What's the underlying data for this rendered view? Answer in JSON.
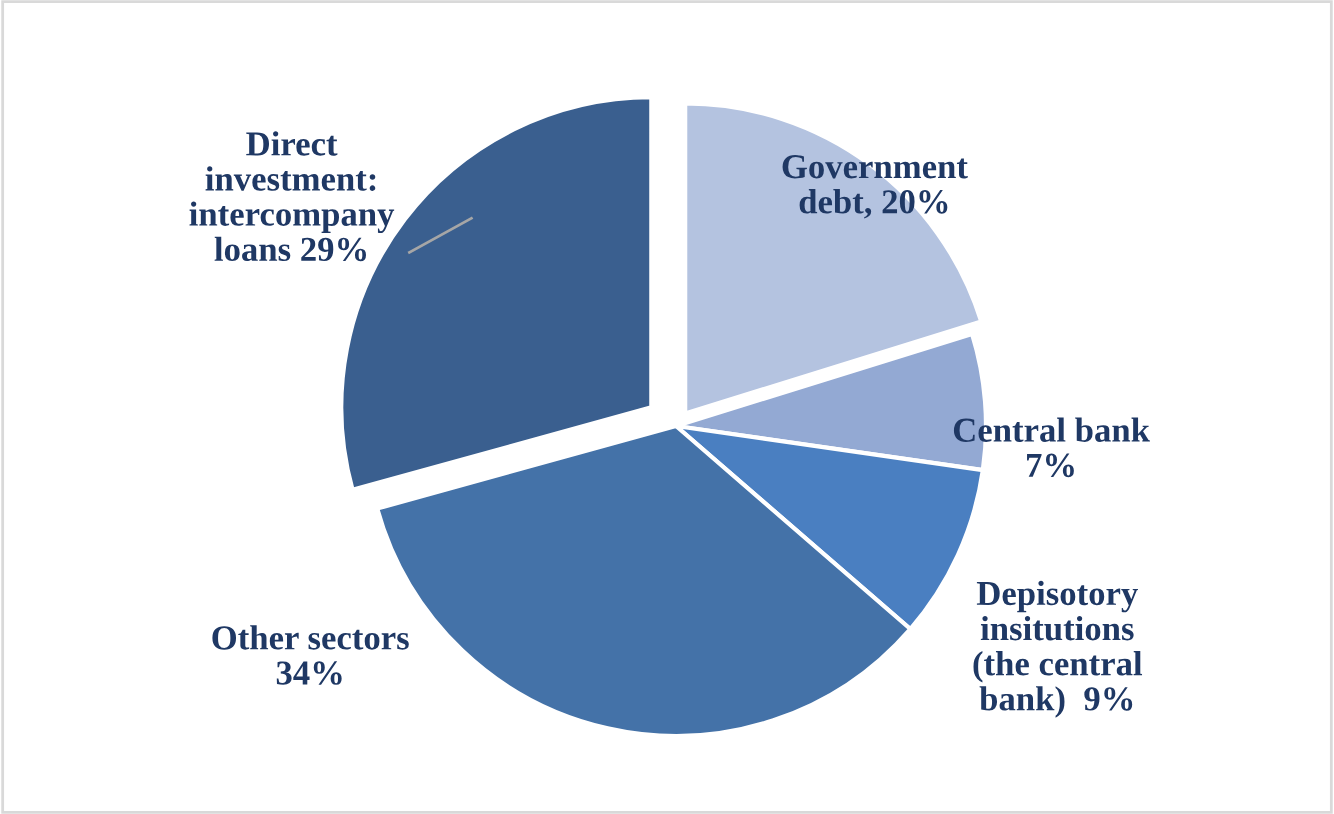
{
  "chart_data": {
    "type": "pie",
    "categories": [
      "Government\ndebt",
      "Central bank",
      "Depisotory\ninsitutions\n(the central\nbank)",
      "Other sectors",
      "Direct\ninvestment:\nintercompany\nloans"
    ],
    "values": [
      20,
      7,
      9,
      34,
      29
    ],
    "colors": [
      "#b4c3e0",
      "#93a9d3",
      "#4a7fc1",
      "#4472a8",
      "#3a5f8f"
    ],
    "value_labels": [
      "20%",
      "7%",
      "9%",
      "34%",
      "29%"
    ],
    "legend": false
  }
}
